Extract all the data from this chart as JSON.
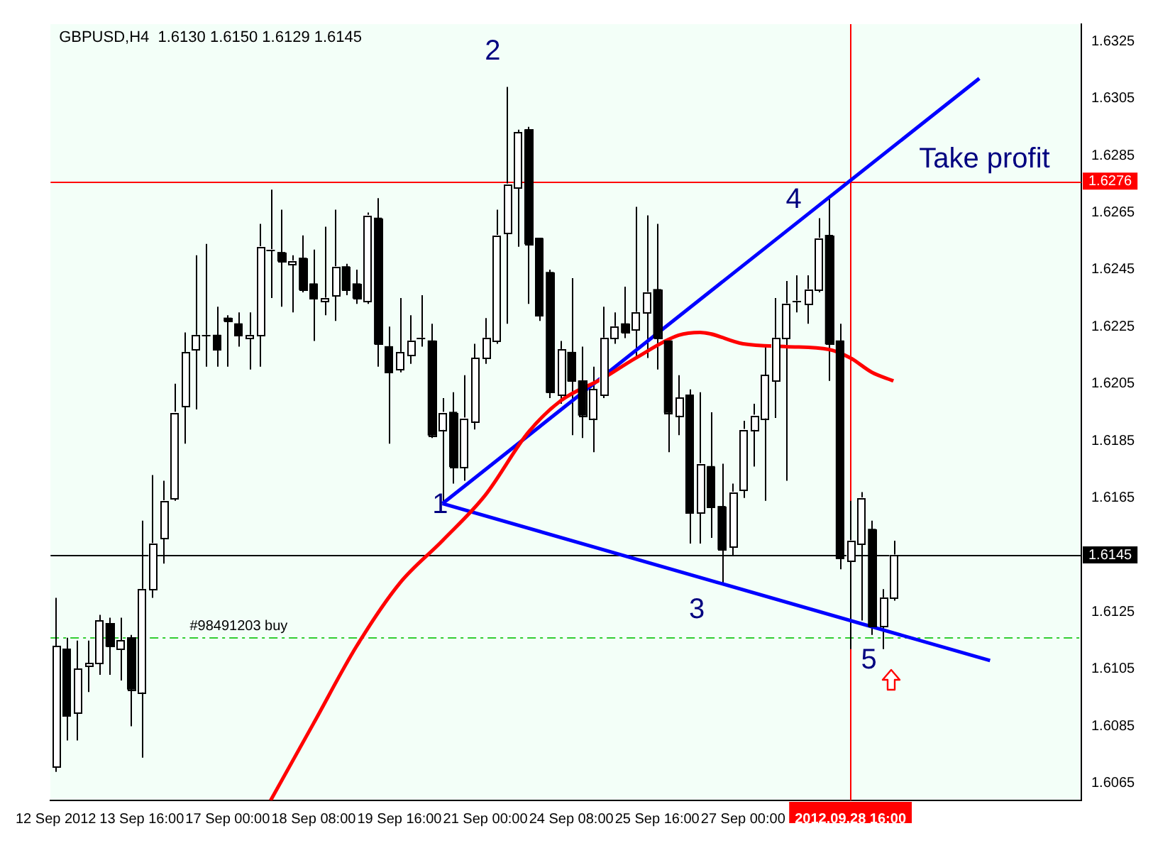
{
  "chart_data": {
    "type": "candlestick",
    "title": "GBPUSD,H4  1.6130 1.6150 1.6129 1.6145",
    "color": "#000000",
    "legend": false,
    "grid": false,
    "marker": "none",
    "categories": [
      "12 Sep 2012",
      null,
      null,
      null,
      null,
      null,
      null,
      null,
      "13 Sep 16:00",
      null,
      null,
      null,
      null,
      null,
      null,
      null,
      "17 Sep 00:00",
      null,
      null,
      null,
      null,
      null,
      null,
      null,
      "18 Sep 08:00",
      null,
      null,
      null,
      null,
      null,
      null,
      null,
      "19 Sep 16:00",
      null,
      null,
      null,
      null,
      null,
      null,
      null,
      "21 Sep 00:00",
      null,
      null,
      null,
      null,
      null,
      null,
      null,
      "24 Sep 08:00",
      null,
      null,
      null,
      null,
      null,
      null,
      null,
      "25 Sep 16:00",
      null,
      null,
      null,
      null,
      null,
      null,
      null,
      "27 Sep 00:00",
      null,
      null,
      null,
      null,
      null,
      null,
      null,
      null,
      null,
      "2012.09.28 16:00",
      null,
      null,
      null,
      null,
      null,
      null,
      null,
      null,
      null,
      null,
      null,
      null,
      null,
      null,
      null,
      null,
      null,
      null,
      null,
      null,
      null
    ],
    "ohlc": [
      [
        1.6071,
        1.613,
        1.6069,
        1.6113
      ],
      [
        1.6112,
        1.6116,
        1.608,
        1.6089
      ],
      [
        1.609,
        1.6115,
        1.608,
        1.6105
      ],
      [
        1.6106,
        1.6115,
        1.6097,
        1.6107
      ],
      [
        1.6107,
        1.6124,
        1.6103,
        1.6122
      ],
      [
        1.6121,
        1.6123,
        1.6103,
        1.6113
      ],
      [
        1.6112,
        1.6123,
        1.6101,
        1.6115
      ],
      [
        1.6116,
        1.6117,
        1.6085,
        1.6098
      ],
      [
        1.6097,
        1.6157,
        1.6074,
        1.6133
      ],
      [
        1.6133,
        1.6173,
        1.613,
        1.6149
      ],
      [
        1.6151,
        1.6171,
        1.6142,
        1.6164
      ],
      [
        1.6165,
        1.6205,
        1.6164,
        1.6195
      ],
      [
        1.6197,
        1.6223,
        1.6184,
        1.6216
      ],
      [
        1.6217,
        1.625,
        1.6196,
        1.6222
      ],
      [
        1.6222,
        1.6254,
        1.6211,
        1.6222
      ],
      [
        1.6222,
        1.6232,
        1.6211,
        1.6217
      ],
      [
        1.6228,
        1.6229,
        1.6211,
        1.6227
      ],
      [
        1.6226,
        1.623,
        1.6218,
        1.6222
      ],
      [
        1.6221,
        1.623,
        1.621,
        1.6222
      ],
      [
        1.6222,
        1.6261,
        1.6211,
        1.6253
      ],
      [
        1.6252,
        1.6273,
        1.6235,
        1.6252
      ],
      [
        1.6251,
        1.6266,
        1.6232,
        1.6248
      ],
      [
        1.6247,
        1.625,
        1.623,
        1.6248
      ],
      [
        1.6249,
        1.6257,
        1.6237,
        1.6238
      ],
      [
        1.624,
        1.6252,
        1.622,
        1.6235
      ],
      [
        1.6234,
        1.626,
        1.6229,
        1.6235
      ],
      [
        1.6236,
        1.6266,
        1.6227,
        1.6246
      ],
      [
        1.6246,
        1.6247,
        1.6236,
        1.6238
      ],
      [
        1.624,
        1.6245,
        1.6233,
        1.6235
      ],
      [
        1.6234,
        1.6265,
        1.6233,
        1.6264
      ],
      [
        1.6263,
        1.627,
        1.6211,
        1.6219
      ],
      [
        1.6218,
        1.6225,
        1.6184,
        1.6209
      ],
      [
        1.621,
        1.6235,
        1.6209,
        1.6216
      ],
      [
        1.6215,
        1.6229,
        1.6212,
        1.622
      ],
      [
        1.6221,
        1.6236,
        1.6218,
        1.6221
      ],
      [
        1.622,
        1.6226,
        1.6186,
        1.6187
      ],
      [
        1.6189,
        1.62,
        1.6163,
        1.6195
      ],
      [
        1.6195,
        1.6202,
        1.617,
        1.6176
      ],
      [
        1.6176,
        1.6208,
        1.6171,
        1.6193
      ],
      [
        1.6192,
        1.6219,
        1.6189,
        1.6214
      ],
      [
        1.6214,
        1.6228,
        1.6212,
        1.6221
      ],
      [
        1.622,
        1.6266,
        1.6219,
        1.6257
      ],
      [
        1.6258,
        1.6309,
        1.6226,
        1.6275
      ],
      [
        1.6274,
        1.6294,
        1.6253,
        1.6293
      ],
      [
        1.6294,
        1.6295,
        1.6233,
        1.6254
      ],
      [
        1.6256,
        1.6256,
        1.6227,
        1.6229
      ],
      [
        1.6244,
        1.6245,
        1.62,
        1.6202
      ],
      [
        1.6201,
        1.622,
        1.6198,
        1.6217
      ],
      [
        1.6216,
        1.6242,
        1.6187,
        1.6206
      ],
      [
        1.6206,
        1.6218,
        1.6186,
        1.6194
      ],
      [
        1.6193,
        1.6211,
        1.6181,
        1.6203
      ],
      [
        1.6201,
        1.6232,
        1.62,
        1.6221
      ],
      [
        1.6221,
        1.623,
        1.6219,
        1.6225
      ],
      [
        1.6226,
        1.6239,
        1.6221,
        1.6223
      ],
      [
        1.6224,
        1.6267,
        1.6214,
        1.623
      ],
      [
        1.623,
        1.6264,
        1.6214,
        1.6237
      ],
      [
        1.6238,
        1.6261,
        1.621,
        1.6221
      ],
      [
        1.622,
        1.622,
        1.6181,
        1.6195
      ],
      [
        1.6194,
        1.6208,
        1.6187,
        1.62
      ],
      [
        1.6201,
        1.6203,
        1.6149,
        1.616
      ],
      [
        1.616,
        1.6202,
        1.6149,
        1.6177
      ],
      [
        1.6176,
        1.6195,
        1.6151,
        1.6162
      ],
      [
        1.6162,
        1.6177,
        1.6135,
        1.6147
      ],
      [
        1.6148,
        1.617,
        1.6145,
        1.6167
      ],
      [
        1.6168,
        1.6192,
        1.6165,
        1.6189
      ],
      [
        1.6189,
        1.6198,
        1.6176,
        1.6194
      ],
      [
        1.6193,
        1.6218,
        1.6164,
        1.6208
      ],
      [
        1.6206,
        1.6235,
        1.6193,
        1.6221
      ],
      [
        1.6221,
        1.6241,
        1.6171,
        1.6233
      ],
      [
        1.6234,
        1.6243,
        1.623,
        1.6234
      ],
      [
        1.6233,
        1.6243,
        1.6226,
        1.6238
      ],
      [
        1.6238,
        1.6263,
        1.6237,
        1.6256
      ],
      [
        1.6257,
        1.627,
        1.6206,
        1.6219
      ],
      [
        1.622,
        1.6226,
        1.614,
        1.6144
      ],
      [
        1.6143,
        1.6164,
        1.6112,
        1.615
      ],
      [
        1.6149,
        1.6167,
        1.6122,
        1.6165
      ],
      [
        1.6154,
        1.6157,
        1.6117,
        1.612
      ],
      [
        1.612,
        1.6133,
        1.6112,
        1.613
      ],
      [
        1.613,
        1.615,
        1.6129,
        1.6145
      ],
      null,
      null,
      null,
      null,
      null,
      null,
      null,
      null,
      null,
      null,
      null,
      null,
      null,
      null,
      null,
      null,
      null
    ],
    "colors": [
      "#ffffff",
      "#000000",
      "#ffffff",
      "#ffffff",
      "#ffffff",
      "#000000",
      "#ffffff",
      "#000000",
      "#ffffff",
      "#ffffff",
      "#ffffff",
      "#ffffff",
      "#ffffff",
      "#ffffff",
      "#ffffff",
      "#000000",
      "#000000",
      "#000000",
      "#ffffff",
      "#ffffff",
      "#ffffff",
      "#000000",
      "#ffffff",
      "#000000",
      "#000000",
      "#ffffff",
      "#ffffff",
      "#000000",
      "#000000",
      "#ffffff",
      "#000000",
      "#000000",
      "#ffffff",
      "#ffffff",
      "#ffffff",
      "#000000",
      "#ffffff",
      "#000000",
      "#ffffff",
      "#ffffff",
      "#ffffff",
      "#ffffff",
      "#ffffff",
      "#ffffff",
      "#000000",
      "#000000",
      "#000000",
      "#ffffff",
      "#000000",
      "#000000",
      "#ffffff",
      "#ffffff",
      "#ffffff",
      "#000000",
      "#ffffff",
      "#ffffff",
      "#000000",
      "#000000",
      "#ffffff",
      "#000000",
      "#ffffff",
      "#000000",
      "#000000",
      "#ffffff",
      "#ffffff",
      "#ffffff",
      "#ffffff",
      "#ffffff",
      "#ffffff",
      "#ffffff",
      "#ffffff",
      "#ffffff",
      "#000000",
      "#000000",
      "#ffffff",
      "#ffffff",
      "#000000",
      "#ffffff",
      "#ffffff",
      null,
      null,
      null,
      null,
      null,
      null,
      null,
      null,
      null,
      null,
      null,
      null,
      null,
      null,
      null,
      null,
      null
    ],
    "series": [
      {
        "type": "line",
        "color": "#ff0000",
        "values": [
          null,
          null,
          null,
          null,
          null,
          null,
          null,
          null,
          null,
          null,
          null,
          null,
          null,
          null,
          null,
          null,
          null,
          null,
          null,
          null,
          1.6059,
          null,
          null,
          null,
          1.6086,
          null,
          null,
          null,
          1.6113,
          null,
          null,
          null,
          1.6135,
          null,
          null,
          null,
          1.615,
          null,
          null,
          null,
          1.6166,
          null,
          null,
          null,
          1.6188,
          null,
          null,
          1.6199,
          null,
          null,
          null,
          1.6207,
          null,
          null,
          1.6214,
          null,
          null,
          null,
          1.6222,
          null,
          1.6223,
          null,
          null,
          null,
          1.6219,
          null,
          null,
          null,
          1.6218,
          null,
          null,
          null,
          1.6217,
          null,
          1.6214,
          null,
          1.6209,
          null,
          1.6206,
          null,
          null,
          null,
          null,
          null,
          null,
          null,
          null,
          null,
          null,
          null,
          null,
          null,
          null,
          null,
          null,
          null
        ]
      },
      {
        "type": "line",
        "color": "#0000ff",
        "values": [
          null,
          null,
          null,
          null,
          null,
          null,
          null,
          null,
          null,
          null,
          null,
          null,
          null,
          null,
          null,
          null,
          null,
          null,
          null,
          null,
          null,
          null,
          null,
          null,
          null,
          null,
          null,
          null,
          null,
          null,
          null,
          null,
          null,
          null,
          null,
          null,
          1.6163,
          null,
          null,
          null,
          null,
          null,
          null,
          null,
          null,
          null,
          null,
          null,
          null,
          null,
          null,
          null,
          null,
          null,
          null,
          null,
          null,
          null,
          null,
          null,
          null,
          null,
          null,
          null,
          null,
          null,
          null,
          null,
          null,
          null,
          null,
          null,
          null,
          null,
          null,
          null,
          null,
          null,
          null,
          null,
          null,
          null,
          null,
          null,
          null,
          null,
          1.6312,
          null,
          null,
          null,
          null,
          null,
          null,
          null,
          null,
          null
        ]
      },
      {
        "type": "line",
        "color": "#0000ff",
        "values": [
          null,
          null,
          null,
          null,
          null,
          null,
          null,
          null,
          null,
          null,
          null,
          null,
          null,
          null,
          null,
          null,
          null,
          null,
          null,
          null,
          null,
          null,
          null,
          null,
          null,
          null,
          null,
          null,
          null,
          null,
          null,
          null,
          null,
          null,
          null,
          null,
          1.6163,
          null,
          null,
          null,
          null,
          null,
          null,
          null,
          null,
          null,
          null,
          null,
          null,
          null,
          null,
          null,
          null,
          null,
          null,
          null,
          null,
          null,
          null,
          null,
          null,
          null,
          null,
          null,
          null,
          null,
          null,
          null,
          null,
          null,
          null,
          null,
          null,
          null,
          null,
          null,
          null,
          null,
          null,
          null,
          null,
          null,
          null,
          null,
          null,
          null,
          null,
          1.6108,
          null,
          null,
          null,
          null,
          null,
          null,
          null,
          null
        ]
      }
    ],
    "ylim": [
      1.6059,
      1.6331
    ],
    "yticks": [
      1.6065,
      1.6085,
      1.6105,
      1.6125,
      1.6145,
      1.6165,
      1.6185,
      1.6205,
      1.6225,
      1.6245,
      1.6265,
      1.6285,
      1.6305,
      1.6325
    ],
    "ref_lines": [
      {
        "axis": "y",
        "value": 1.6276,
        "label": "1.6276",
        "color": "#ff0000",
        "line_style": "solid"
      },
      {
        "axis": "y",
        "value": 1.6145,
        "label": "1.6145",
        "color": "#000000",
        "line_style": "solid"
      },
      {
        "axis": "y",
        "value": 1.6116,
        "label": "#98491203 buy",
        "color": "#32cd32",
        "line_style": "dashed"
      },
      {
        "axis": "x",
        "value": "2012.09.28 16:00",
        "color": "#ff0000",
        "line_style": "solid"
      }
    ],
    "annotations": [
      "1",
      "2",
      "3",
      "4",
      "5",
      "Take profit"
    ]
  }
}
